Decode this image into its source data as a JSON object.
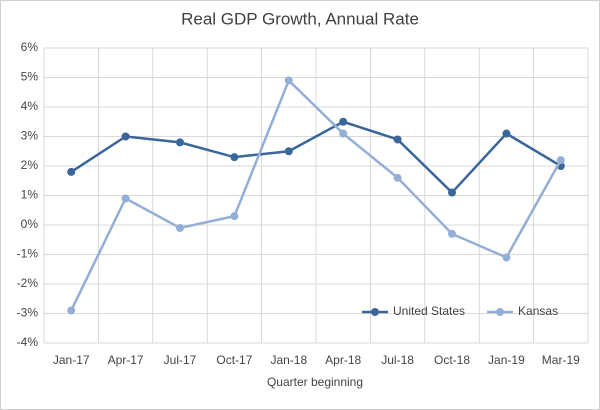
{
  "chart_data": {
    "type": "line",
    "title": "Real GDP Growth, Annual Rate",
    "x_label": "Quarter beginning",
    "categories": [
      "Jan-17",
      "Apr-17",
      "Jul-17",
      "Oct-17",
      "Jan-18",
      "Apr-18",
      "Jul-18",
      "Oct-18",
      "Jan-19",
      "Mar-19"
    ],
    "series": [
      {
        "name": "United States",
        "color": "#3b6699",
        "values": [
          1.8,
          3.0,
          2.8,
          2.3,
          2.5,
          3.5,
          2.9,
          1.1,
          3.1,
          2.0
        ]
      },
      {
        "name": "Kansas",
        "color": "#94afd6",
        "values": [
          -2.9,
          0.9,
          -0.1,
          0.3,
          4.9,
          3.1,
          1.6,
          -0.3,
          -1.1,
          2.2
        ]
      }
    ],
    "ylim": [
      -4,
      6
    ],
    "yticks": [
      {
        "value": -4,
        "label": "-4%"
      },
      {
        "value": -3,
        "label": "-3%"
      },
      {
        "value": -2,
        "label": "-2%"
      },
      {
        "value": -1,
        "label": "-1%"
      },
      {
        "value": 0,
        "label": "0%"
      },
      {
        "value": 1,
        "label": "1%"
      },
      {
        "value": 2,
        "label": "2%"
      },
      {
        "value": 3,
        "label": "3%"
      },
      {
        "value": 4,
        "label": "4%"
      },
      {
        "value": 5,
        "label": "5%"
      },
      {
        "value": 6,
        "label": "6%"
      }
    ],
    "grid": true,
    "legend": "lower right"
  }
}
